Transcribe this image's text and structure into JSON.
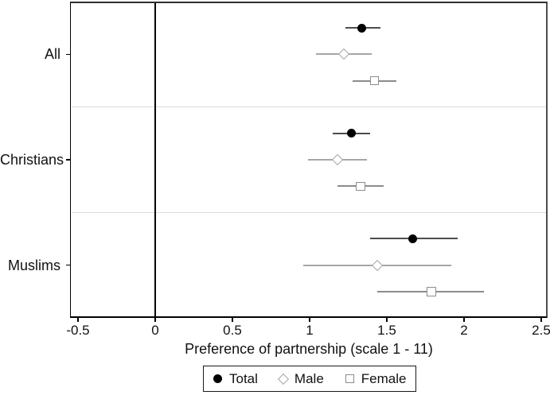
{
  "figure": {
    "background": "#ffffff",
    "axis_color": "#000000",
    "grid_color": "#dcdcdc",
    "text_color": "#111111"
  },
  "chart_data": {
    "type": "scatter",
    "subtype": "forest-plot-with-confidence-intervals",
    "title": "",
    "xlabel": "Preference of partnership (scale 1 - 11)",
    "ylabel": "",
    "xlim": [
      -0.55,
      2.54
    ],
    "xtick_values": [
      -0.5,
      0,
      0.5,
      1,
      1.5,
      2,
      2.5
    ],
    "xtick_labels": [
      "-0.5",
      "0",
      "0.5",
      "1",
      "1.5",
      "2",
      "2.5"
    ],
    "zero_line_x": 0,
    "grid": "horizontal separators between category bands",
    "legend_position": "bottom-center",
    "categories": [
      "All",
      "Christians",
      "Muslims"
    ],
    "series": [
      {
        "name": "Total",
        "marker": "circle",
        "marker_color": "#000000",
        "line_color": "#4d4d4d",
        "estimates": [
          1.34,
          1.27,
          1.67
        ],
        "ci_low": [
          1.23,
          1.15,
          1.39
        ],
        "ci_high": [
          1.46,
          1.39,
          1.96
        ]
      },
      {
        "name": "Male",
        "marker": "diamond",
        "marker_color": "#a6a6a6",
        "line_color": "#a6a6a6",
        "estimates": [
          1.22,
          1.18,
          1.44
        ],
        "ci_low": [
          1.04,
          0.99,
          0.96
        ],
        "ci_high": [
          1.4,
          1.37,
          1.92
        ]
      },
      {
        "name": "Female",
        "marker": "square",
        "marker_color": "#8c8c8c",
        "line_color": "#8c8c8c",
        "estimates": [
          1.42,
          1.33,
          1.79
        ],
        "ci_low": [
          1.28,
          1.18,
          1.44
        ],
        "ci_high": [
          1.56,
          1.48,
          2.13
        ]
      }
    ],
    "legend": {
      "entries": [
        {
          "label": "Total",
          "marker": "circle"
        },
        {
          "label": "Male",
          "marker": "diamond"
        },
        {
          "label": "Female",
          "marker": "square"
        }
      ]
    }
  }
}
